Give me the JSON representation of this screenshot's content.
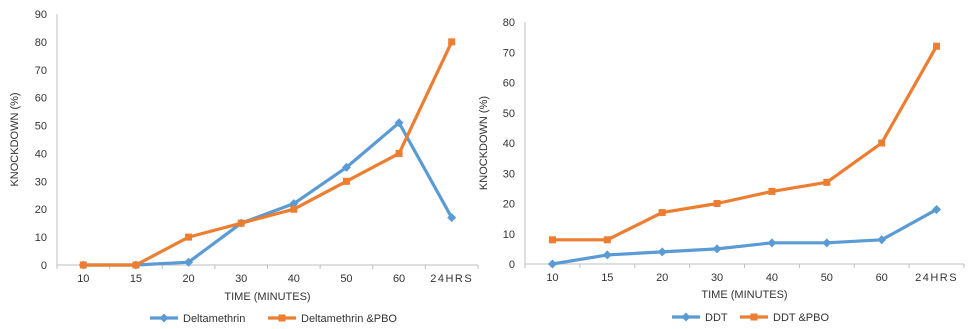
{
  "chart_data": [
    {
      "type": "line",
      "categories": [
        "10",
        "15",
        "20",
        "30",
        "40",
        "50",
        "60",
        "24HRS"
      ],
      "series": [
        {
          "name": "Deltamethrin",
          "color": "#5b9bd5",
          "marker": "diamond",
          "values": [
            0,
            0,
            1,
            15,
            22,
            35,
            51,
            17
          ]
        },
        {
          "name": "Deltamethrin &PBO",
          "color": "#ed7d31",
          "marker": "square",
          "values": [
            0,
            0,
            10,
            15,
            20,
            30,
            40,
            80
          ]
        }
      ],
      "yticks": [
        "0",
        "10",
        "20",
        "30",
        "40",
        "50",
        "60",
        "70",
        "80",
        "90"
      ],
      "title": "",
      "xlabel": "TIME (MINUTES)",
      "ylabel": "KNOCKDOWN (%)",
      "ylim": [
        0,
        90
      ],
      "grid": false,
      "legend_position": "bottom"
    },
    {
      "type": "line",
      "categories": [
        "10",
        "15",
        "20",
        "30",
        "40",
        "50",
        "60",
        "24HRS"
      ],
      "series": [
        {
          "name": "DDT",
          "color": "#5b9bd5",
          "marker": "diamond",
          "values": [
            0,
            3,
            4,
            5,
            7,
            7,
            8,
            18
          ]
        },
        {
          "name": "DDT &PBO",
          "color": "#ed7d31",
          "marker": "square",
          "values": [
            8,
            8,
            17,
            20,
            24,
            27,
            40,
            72
          ]
        }
      ],
      "yticks": [
        "0",
        "10",
        "20",
        "30",
        "40",
        "50",
        "60",
        "70",
        "80"
      ],
      "title": "",
      "xlabel": "TIME (MINUTES)",
      "ylabel": "KNOCKDOWN (%)",
      "ylim": [
        0,
        80
      ],
      "grid": false,
      "legend_position": "bottom"
    }
  ]
}
